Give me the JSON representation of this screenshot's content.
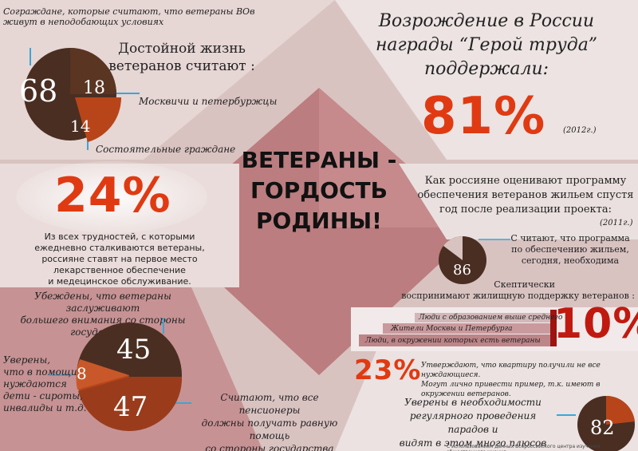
{
  "colors": {
    "accent_red": "#e03a12",
    "pie_dark": "#4a2e22",
    "pie_orange": "#b8451a",
    "connector": "#3aa6d8"
  },
  "center_title": [
    "ВЕТЕРАНЫ -",
    "ГОРДОСТЬ",
    "РОДИНЫ!"
  ],
  "top_left": {
    "sympathize_note": [
      "Сограждане, которые считают, что ветераны ВОв",
      "живут в неподобающих условиях"
    ],
    "heading": [
      "Достойной жизнь",
      "ветеранов считают :"
    ],
    "pie": {
      "values": [
        68,
        18,
        14
      ]
    },
    "label_moscow": "Москвичи и петербуржцы",
    "label_wealthy": "Состоятельные граждане"
  },
  "top_right": {
    "heading": [
      "Возрождение в России",
      "награды “Герой труда”",
      "поддержали:"
    ],
    "percent": "81%",
    "year": "(2012г.)"
  },
  "mid_left": {
    "percent": "24%",
    "text": [
      "Из всех трудностей,  с которыми",
      "ежедневно сталкиваются ветераны,",
      "россияне ставят на первое место",
      "лекарственное обеспечение",
      "и медецинское обслуживание."
    ]
  },
  "housing": {
    "heading": [
      "Как россияне оценивают программу",
      "обеспечения ветеранов жильем спустя",
      "год после реализации проекта:"
    ],
    "year": "(2011г.)",
    "pie_value": 86,
    "pie_label": [
      "С читают, что программа",
      "по обеспечению жильем,",
      "сегодня, необходима"
    ],
    "skeptic_heading": [
      "Скептически",
      "воспринимают  жилищную поддержку ветеранов :"
    ],
    "bars": [
      "Люди с образованием выше среднего",
      "Жители Москвы и Петербурга",
      "Люди, в окружении которых есть ветераны"
    ],
    "bars_percent": "10%"
  },
  "bottom_left": {
    "heading": [
      "Убеждены, что ветераны заслуживают",
      "большего внимания со стороны",
      "государства"
    ],
    "pie": {
      "values": [
        45,
        8,
        47
      ]
    },
    "orphans_label": [
      "Уверены,",
      "что в помощи",
      "нуждаются",
      "дети - сироты,",
      "инвалиды и т.д."
    ],
    "pensioners_label": [
      "Считают, что все пенсионеры",
      "должны получать равную помощь",
      "со стороны государства"
    ]
  },
  "bottom_right": {
    "percent": "23%",
    "text": [
      "Утверждают, что квартиру получили не все нуждающиеся.",
      "Могут лично привести пример, т.к. имеют в окружении ветеранов."
    ],
    "parades_label": [
      "Уверены в необходимости",
      "регулярного проведения парадов и",
      "видят в этом много плюсов"
    ],
    "pie_value": 82
  },
  "source": "С использованием данных Всероссийского центра изучения общественного мнения"
}
